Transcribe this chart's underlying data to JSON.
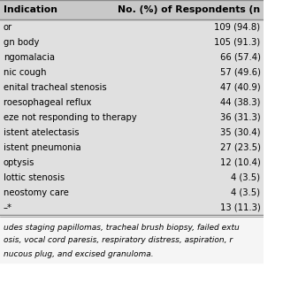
{
  "col1_header": "Indication",
  "col2_header": "No. (%) of Respondents (n",
  "rows": [
    [
      "or",
      "109 (94.8)"
    ],
    [
      "gn body",
      "105 (91.3)"
    ],
    [
      "ngomalacia",
      "66 (57.4)"
    ],
    [
      "nic cough",
      "57 (49.6)"
    ],
    [
      "enital tracheal stenosis",
      "47 (40.9)"
    ],
    [
      "roesophageal reflux",
      "44 (38.3)"
    ],
    [
      "eze not responding to therapy",
      "36 (31.3)"
    ],
    [
      "istent atelectasis",
      "35 (30.4)"
    ],
    [
      "istent pneumonia",
      "27 (23.5)"
    ],
    [
      "optysis",
      "12 (10.4)"
    ],
    [
      "lottic stenosis",
      "4 (3.5)"
    ],
    [
      "neostomy care",
      "4 (3.5)"
    ],
    [
      "–*",
      "13 (11.3)"
    ]
  ],
  "footnote_lines": [
    "udes staging papillomas, tracheal brush biopsy, failed extu",
    "osis, vocal cord paresis, respiratory distress, aspiration, r",
    "nucous plug, and excised granuloma."
  ],
  "table_bg": "#e0e0e0",
  "header_bg": "#c8c8c8",
  "footnote_bg": "#f5f5f5",
  "border_color": "#888888",
  "text_color": "#000000",
  "header_font_size": 7.8,
  "row_font_size": 7.2,
  "footnote_font_size": 6.5
}
